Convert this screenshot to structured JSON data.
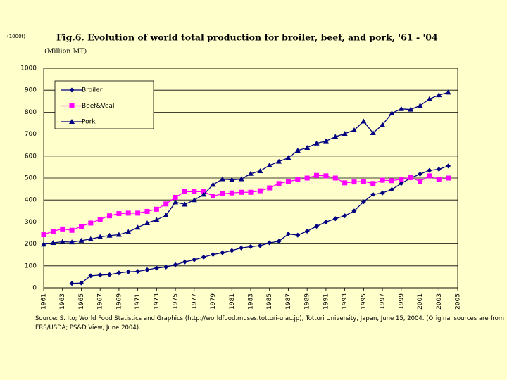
{
  "chart_data": {
    "type": "line",
    "title": "Fig.6. Evolution of world total production for broiler, beef, and pork, '61 - '04",
    "unit_note": "(1000t)",
    "y_label": "(Million MT)",
    "source": "Source: S. Ito; World Food Statistics and Graphics (http://worldfood.muses.tottori-u.ac.jp), Tottori University, Japan, June 15, 2004. (Original sources are from ERS/USDA; PS&D View, June 2004).",
    "x": [
      1961,
      1962,
      1963,
      1964,
      1965,
      1966,
      1967,
      1968,
      1969,
      1970,
      1971,
      1972,
      1973,
      1974,
      1975,
      1976,
      1977,
      1978,
      1979,
      1980,
      1981,
      1982,
      1983,
      1984,
      1985,
      1986,
      1987,
      1988,
      1989,
      1990,
      1991,
      1992,
      1993,
      1994,
      1995,
      1996,
      1997,
      1998,
      1999,
      2000,
      2001,
      2002,
      2003,
      2004
    ],
    "series": [
      {
        "name": "Broiler",
        "color": "#000080",
        "marker": "diamond",
        "values": [
          null,
          null,
          null,
          20,
          22,
          55,
          58,
          60,
          68,
          73,
          75,
          82,
          90,
          95,
          105,
          118,
          128,
          140,
          152,
          160,
          170,
          182,
          188,
          192,
          205,
          212,
          245,
          240,
          258,
          280,
          300,
          315,
          328,
          350,
          392,
          425,
          432,
          448,
          475,
          500,
          518,
          535,
          540,
          555
        ]
      },
      {
        "name": "Beef&Veal",
        "color": "#ff00ff",
        "marker": "square",
        "values": [
          242,
          258,
          268,
          262,
          280,
          295,
          312,
          328,
          338,
          340,
          340,
          348,
          358,
          382,
          412,
          438,
          438,
          438,
          418,
          428,
          432,
          435,
          435,
          442,
          455,
          475,
          485,
          492,
          500,
          512,
          510,
          500,
          478,
          482,
          485,
          475,
          490,
          488,
          495,
          502,
          485,
          510,
          492,
          500
        ]
      },
      {
        "name": "Pork",
        "color": "#000080",
        "marker": "triangle",
        "values": [
          198,
          205,
          210,
          208,
          215,
          222,
          232,
          238,
          242,
          255,
          275,
          295,
          310,
          330,
          390,
          380,
          400,
          425,
          470,
          495,
          492,
          495,
          520,
          532,
          558,
          575,
          592,
          625,
          638,
          658,
          668,
          688,
          702,
          718,
          758,
          705,
          742,
          795,
          815,
          812,
          830,
          860,
          878,
          890
        ]
      }
    ],
    "xlim": [
      1961,
      2005
    ],
    "xticks": [
      1961,
      1963,
      1965,
      1967,
      1969,
      1971,
      1973,
      1975,
      1977,
      1979,
      1981,
      1983,
      1985,
      1987,
      1989,
      1991,
      1993,
      1995,
      1997,
      1999,
      2001,
      2003,
      2005
    ],
    "ylim": [
      0,
      1000
    ],
    "yticks": [
      0,
      100,
      200,
      300,
      400,
      500,
      600,
      700,
      800,
      900,
      1000
    ],
    "grid": true
  }
}
